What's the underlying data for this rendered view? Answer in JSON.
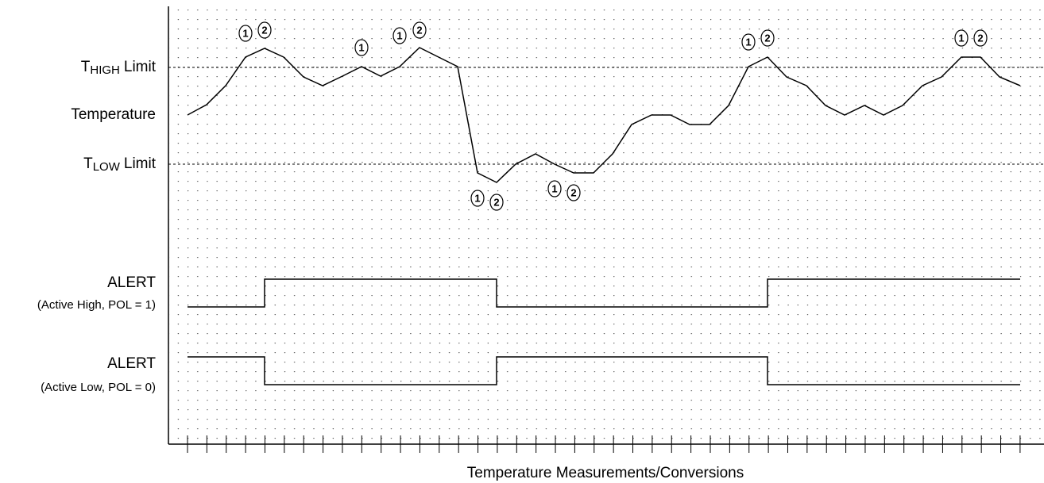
{
  "t_high": {
    "symbol": "T",
    "subscript": "HIGH",
    "word": "Limit"
  },
  "temperature": "Temperature",
  "t_low": {
    "symbol": "T",
    "subscript": "LOW",
    "word": "Limit"
  },
  "alert_high": {
    "title": "ALERT",
    "note": "(Active High, POL = 1)"
  },
  "alert_low": {
    "title": "ALERT",
    "note": "(Active Low, POL = 0)"
  },
  "x_axis_label": "Temperature Measurements/Conversions",
  "markers": [
    "1",
    "2",
    "1",
    "1",
    "2",
    "1",
    "2",
    "1",
    "2",
    "1",
    "2",
    "1",
    "2"
  ]
}
